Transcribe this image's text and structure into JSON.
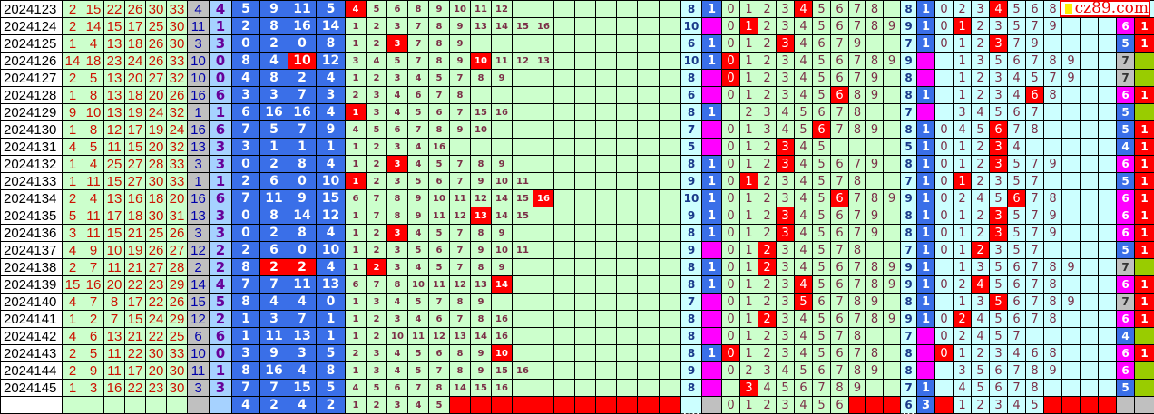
{
  "logo": {
    "text": "cz89.com"
  },
  "colors": {
    "red": "#ff0000",
    "blue": "#3a6fe8",
    "magenta": "#ff00ff",
    "gray": "#c0c0c0",
    "green": "#ccffcc",
    "olive": "#99cc00",
    "cyan": "#ccffff"
  },
  "rows": [
    {
      "issue": "2024123",
      "reds": [
        2,
        15,
        22,
        26,
        30,
        33
      ],
      "blue": 4,
      "d": 4,
      "e": [
        5,
        9,
        11,
        5
      ],
      "e_red": [],
      "f": [
        4,
        5,
        6,
        8,
        9,
        10,
        11,
        12
      ],
      "f_red": 4,
      "fc": 8,
      "fm": "1",
      "h": [
        0,
        1,
        2,
        3,
        4,
        5,
        6,
        7,
        8
      ],
      "h_red": 4,
      "ic": 8,
      "im": "1",
      "j": [
        0,
        2,
        3,
        4,
        5,
        6,
        8
      ],
      "j_red": 4,
      "k": null,
      "last": null
    },
    {
      "issue": "2024124",
      "reds": [
        2,
        14,
        15,
        17,
        25,
        30
      ],
      "blue": 11,
      "d": 1,
      "e": [
        2,
        8,
        16,
        14
      ],
      "e_red": [],
      "f": [
        1,
        2,
        3,
        7,
        8,
        9,
        13,
        14,
        15,
        16
      ],
      "f_red": null,
      "fc": 10,
      "fm": "",
      "h": [
        0,
        1,
        2,
        3,
        4,
        5,
        6,
        7,
        8,
        9
      ],
      "h_red": 1,
      "ic": 9,
      "im": "1",
      "j": [
        0,
        1,
        2,
        3,
        5,
        7,
        9
      ],
      "j_red": 1,
      "k": {
        "v": 6,
        "c": "magenta"
      },
      "last": "1"
    },
    {
      "issue": "2024125",
      "reds": [
        1,
        4,
        13,
        18,
        26,
        30
      ],
      "blue": 3,
      "d": 3,
      "e": [
        0,
        2,
        0,
        8
      ],
      "e_red": [],
      "f": [
        1,
        2,
        3,
        7,
        8,
        9
      ],
      "f_red": 3,
      "fc": 6,
      "fm": "1",
      "h": [
        0,
        1,
        2,
        3,
        4,
        6,
        7,
        9
      ],
      "h_red": 3,
      "ic": 7,
      "im": "1",
      "j": [
        0,
        1,
        2,
        3,
        7,
        9
      ],
      "j_red": 3,
      "k": {
        "v": 5,
        "c": "blue"
      },
      "last": "1"
    },
    {
      "issue": "2024126",
      "reds": [
        14,
        18,
        23,
        24,
        26,
        33
      ],
      "blue": 10,
      "d": 0,
      "e": [
        8,
        4,
        10,
        12
      ],
      "e_red": [
        2
      ],
      "f": [
        3,
        4,
        5,
        7,
        8,
        9,
        10,
        11,
        12,
        13
      ],
      "f_red": 10,
      "fc": 10,
      "fm": "1",
      "h": [
        0,
        1,
        2,
        3,
        4,
        5,
        6,
        7,
        8,
        9
      ],
      "h_red": 0,
      "ic": 9,
      "im": "",
      "j": [
        "",
        1,
        3,
        5,
        6,
        7,
        8,
        9
      ],
      "j_red": null,
      "k": {
        "v": 7,
        "c": "gray"
      },
      "last": ""
    },
    {
      "issue": "2024127",
      "reds": [
        2,
        5,
        13,
        20,
        27,
        32
      ],
      "blue": 10,
      "d": 0,
      "e": [
        4,
        8,
        2,
        4
      ],
      "e_red": [],
      "f": [
        1,
        2,
        3,
        4,
        5,
        7,
        8,
        9
      ],
      "f_red": null,
      "fc": 8,
      "fm": "",
      "h": [
        0,
        1,
        2,
        3,
        4,
        5,
        6,
        7,
        9
      ],
      "h_red": 0,
      "ic": 8,
      "im": "",
      "j": [
        "",
        1,
        2,
        3,
        4,
        5,
        7,
        9
      ],
      "j_red": null,
      "k": {
        "v": 7,
        "c": "gray"
      },
      "last": ""
    },
    {
      "issue": "2024128",
      "reds": [
        1,
        8,
        13,
        18,
        20,
        26
      ],
      "blue": 16,
      "d": 6,
      "e": [
        3,
        3,
        7,
        3
      ],
      "e_red": [],
      "f": [
        2,
        3,
        4,
        6,
        7,
        8
      ],
      "f_red": null,
      "fc": 6,
      "fm": "",
      "h": [
        0,
        1,
        2,
        3,
        4,
        5,
        6,
        8,
        9
      ],
      "h_red": 6,
      "ic": 8,
      "im": "1",
      "j": [
        "",
        1,
        2,
        3,
        4,
        6,
        8
      ],
      "j_red": 6,
      "k": {
        "v": 6,
        "c": "magenta"
      },
      "last": "1"
    },
    {
      "issue": "2024129",
      "reds": [
        9,
        10,
        13,
        19,
        24,
        32
      ],
      "blue": 1,
      "d": 1,
      "e": [
        6,
        16,
        16,
        4
      ],
      "e_red": [],
      "f": [
        1,
        3,
        4,
        5,
        6,
        7,
        15,
        16
      ],
      "f_red": 1,
      "fc": 8,
      "fm": "1",
      "h": [
        "",
        2,
        3,
        4,
        5,
        6,
        7,
        8
      ],
      "h_red": null,
      "ic": 7,
      "im": "",
      "j": [
        "",
        3,
        4,
        5,
        6,
        7
      ],
      "j_red": null,
      "k": {
        "v": 5,
        "c": "blue"
      },
      "last": ""
    },
    {
      "issue": "2024130",
      "reds": [
        1,
        8,
        12,
        17,
        19,
        24
      ],
      "blue": 16,
      "d": 6,
      "e": [
        7,
        5,
        7,
        9
      ],
      "e_red": [],
      "f": [
        4,
        5,
        6,
        7,
        8,
        9,
        10
      ],
      "f_red": null,
      "fc": 7,
      "fm": "",
      "h": [
        0,
        1,
        3,
        4,
        5,
        6,
        7,
        8,
        9
      ],
      "h_red": 6,
      "ic": 8,
      "im": "1",
      "j": [
        0,
        4,
        5,
        6,
        7,
        8
      ],
      "j_red": 6,
      "k": {
        "v": 5,
        "c": "blue"
      },
      "last": "1"
    },
    {
      "issue": "2024131",
      "reds": [
        4,
        5,
        11,
        15,
        20,
        32
      ],
      "blue": 13,
      "d": 3,
      "e": [
        3,
        1,
        1,
        1
      ],
      "e_red": [],
      "f": [
        1,
        2,
        3,
        4,
        16
      ],
      "f_red": null,
      "fc": 5,
      "fm": "",
      "h": [
        0,
        1,
        2,
        3,
        4,
        5
      ],
      "h_red": 3,
      "ic": 5,
      "im": "1",
      "j": [
        0,
        1,
        2,
        3,
        4
      ],
      "j_red": 3,
      "k": {
        "v": 4,
        "c": "blue"
      },
      "last": "1"
    },
    {
      "issue": "2024132",
      "reds": [
        1,
        4,
        25,
        27,
        28,
        33
      ],
      "blue": 3,
      "d": 3,
      "e": [
        0,
        2,
        8,
        4
      ],
      "e_red": [],
      "f": [
        1,
        2,
        3,
        4,
        5,
        7,
        8,
        9
      ],
      "f_red": 3,
      "fc": 8,
      "fm": "1",
      "h": [
        0,
        1,
        2,
        3,
        4,
        5,
        6,
        7,
        9
      ],
      "h_red": 3,
      "ic": 8,
      "im": "1",
      "j": [
        0,
        1,
        2,
        3,
        5,
        7,
        9
      ],
      "j_red": 3,
      "k": {
        "v": 6,
        "c": "magenta"
      },
      "last": "1"
    },
    {
      "issue": "2024133",
      "reds": [
        1,
        11,
        15,
        27,
        30,
        33
      ],
      "blue": 1,
      "d": 1,
      "e": [
        2,
        6,
        0,
        10
      ],
      "e_red": [],
      "f": [
        1,
        2,
        3,
        5,
        6,
        7,
        9,
        10,
        11
      ],
      "f_red": 1,
      "fc": 9,
      "fm": "1",
      "h": [
        0,
        1,
        2,
        3,
        4,
        5,
        7,
        8
      ],
      "h_red": 1,
      "ic": 7,
      "im": "1",
      "j": [
        0,
        1,
        2,
        3,
        5,
        7
      ],
      "j_red": 1,
      "k": {
        "v": 5,
        "c": "blue"
      },
      "last": "1"
    },
    {
      "issue": "2024134",
      "reds": [
        2,
        4,
        13,
        16,
        18,
        20
      ],
      "blue": 16,
      "d": 6,
      "e": [
        7,
        11,
        9,
        15
      ],
      "e_red": [],
      "f": [
        6,
        7,
        8,
        9,
        10,
        11,
        12,
        14,
        15,
        16
      ],
      "f_red": 16,
      "fc": 10,
      "fm": "1",
      "h": [
        0,
        1,
        2,
        3,
        4,
        5,
        6,
        7,
        8,
        9
      ],
      "h_red": 6,
      "ic": 9,
      "im": "1",
      "j": [
        0,
        2,
        4,
        5,
        6,
        7,
        8
      ],
      "j_red": 6,
      "k": {
        "v": 6,
        "c": "magenta"
      },
      "last": "1"
    },
    {
      "issue": "2024135",
      "reds": [
        5,
        11,
        17,
        18,
        30,
        31
      ],
      "blue": 13,
      "d": 3,
      "e": [
        0,
        8,
        14,
        12
      ],
      "e_red": [],
      "f": [
        1,
        7,
        8,
        9,
        11,
        12,
        13,
        14,
        15
      ],
      "f_red": 13,
      "fc": 9,
      "fm": "1",
      "h": [
        0,
        1,
        2,
        3,
        4,
        5,
        6,
        7,
        9
      ],
      "h_red": 3,
      "ic": 8,
      "im": "1",
      "j": [
        0,
        1,
        2,
        3,
        5,
        7,
        9
      ],
      "j_red": 3,
      "k": {
        "v": 6,
        "c": "magenta"
      },
      "last": "1"
    },
    {
      "issue": "2024136",
      "reds": [
        3,
        11,
        15,
        21,
        25,
        26
      ],
      "blue": 3,
      "d": 3,
      "e": [
        0,
        2,
        8,
        4
      ],
      "e_red": [],
      "f": [
        1,
        2,
        3,
        4,
        5,
        7,
        8,
        9
      ],
      "f_red": 3,
      "fc": 8,
      "fm": "1",
      "h": [
        0,
        1,
        2,
        3,
        4,
        5,
        6,
        7,
        9
      ],
      "h_red": 3,
      "ic": 8,
      "im": "1",
      "j": [
        0,
        1,
        2,
        3,
        5,
        7,
        9
      ],
      "j_red": 3,
      "k": {
        "v": 6,
        "c": "magenta"
      },
      "last": "1"
    },
    {
      "issue": "2024137",
      "reds": [
        4,
        9,
        10,
        19,
        26,
        27
      ],
      "blue": 12,
      "d": 2,
      "e": [
        2,
        6,
        0,
        10
      ],
      "e_red": [],
      "f": [
        1,
        2,
        3,
        5,
        6,
        7,
        9,
        10,
        11
      ],
      "f_red": null,
      "fc": 9,
      "fm": "",
      "h": [
        0,
        1,
        2,
        3,
        4,
        5,
        7,
        8
      ],
      "h_red": 2,
      "ic": 7,
      "im": "1",
      "j": [
        0,
        1,
        2,
        3,
        5,
        7
      ],
      "j_red": 2,
      "k": {
        "v": 5,
        "c": "blue"
      },
      "last": "1"
    },
    {
      "issue": "2024138",
      "reds": [
        2,
        7,
        11,
        21,
        27,
        28
      ],
      "blue": 2,
      "d": 2,
      "e": [
        8,
        2,
        2,
        4
      ],
      "e_red": [
        1,
        2
      ],
      "f": [
        1,
        2,
        3,
        4,
        5,
        7,
        8,
        9
      ],
      "f_red": 2,
      "fc": 8,
      "fm": "1",
      "h": [
        0,
        1,
        2,
        3,
        4,
        5,
        6,
        7,
        8,
        9
      ],
      "h_red": 2,
      "ic": 9,
      "im": "1",
      "j": [
        "",
        1,
        3,
        5,
        6,
        7,
        8,
        9
      ],
      "j_red": null,
      "k": {
        "v": 7,
        "c": "gray"
      },
      "last": ""
    },
    {
      "issue": "2024139",
      "reds": [
        15,
        16,
        20,
        22,
        23,
        29
      ],
      "blue": 14,
      "d": 4,
      "e": [
        7,
        7,
        11,
        13
      ],
      "e_red": [],
      "f": [
        6,
        7,
        8,
        10,
        11,
        12,
        13,
        14
      ],
      "f_red": 14,
      "fc": 8,
      "fm": "1",
      "h": [
        0,
        1,
        2,
        3,
        4,
        5,
        6,
        7,
        8,
        9
      ],
      "h_red": 4,
      "ic": 9,
      "im": "1",
      "j": [
        0,
        2,
        4,
        5,
        6,
        7,
        8
      ],
      "j_red": 4,
      "k": {
        "v": 6,
        "c": "magenta"
      },
      "last": "1"
    },
    {
      "issue": "2024140",
      "reds": [
        4,
        7,
        8,
        17,
        22,
        26
      ],
      "blue": 15,
      "d": 5,
      "e": [
        8,
        4,
        4,
        0
      ],
      "e_red": [],
      "f": [
        1,
        3,
        4,
        5,
        7,
        8,
        9
      ],
      "f_red": null,
      "fc": 7,
      "fm": "",
      "h": [
        0,
        1,
        2,
        3,
        5,
        6,
        7,
        8,
        9
      ],
      "h_red": 5,
      "ic": 8,
      "im": "1",
      "j": [
        "",
        1,
        3,
        5,
        6,
        7,
        8,
        9
      ],
      "j_red": 5,
      "k": {
        "v": 7,
        "c": "gray"
      },
      "last": "1"
    },
    {
      "issue": "2024141",
      "reds": [
        1,
        2,
        7,
        15,
        24,
        29
      ],
      "blue": 12,
      "d": 2,
      "e": [
        1,
        3,
        7,
        1
      ],
      "e_red": [],
      "f": [
        1,
        2,
        3,
        4,
        6,
        7,
        8,
        16
      ],
      "f_red": null,
      "fc": 8,
      "fm": "",
      "h": [
        0,
        1,
        2,
        3,
        4,
        5,
        6,
        7,
        8,
        9
      ],
      "h_red": 2,
      "ic": 9,
      "im": "1",
      "j": [
        0,
        2,
        4,
        5,
        6,
        7,
        8
      ],
      "j_red": 2,
      "k": {
        "v": 6,
        "c": "magenta"
      },
      "last": "1"
    },
    {
      "issue": "2024142",
      "reds": [
        4,
        6,
        13,
        21,
        22,
        25
      ],
      "blue": 6,
      "d": 6,
      "e": [
        1,
        11,
        13,
        1
      ],
      "e_red": [],
      "f": [
        1,
        2,
        10,
        11,
        12,
        13,
        14,
        16
      ],
      "f_red": null,
      "fc": 8,
      "fm": "",
      "h": [
        0,
        1,
        2,
        3,
        4,
        5,
        7,
        8
      ],
      "h_red": null,
      "ic": 7,
      "im": "",
      "j": [
        0,
        2,
        4,
        5,
        7
      ],
      "j_red": null,
      "k": {
        "v": 4,
        "c": "blue"
      },
      "last": ""
    },
    {
      "issue": "2024143",
      "reds": [
        2,
        5,
        11,
        22,
        30,
        33
      ],
      "blue": 10,
      "d": 0,
      "e": [
        3,
        9,
        3,
        5
      ],
      "e_red": [],
      "f": [
        2,
        3,
        4,
        5,
        6,
        8,
        9,
        10
      ],
      "f_red": 10,
      "fc": 8,
      "fm": "1",
      "h": [
        0,
        1,
        2,
        3,
        4,
        5,
        6,
        7,
        8
      ],
      "h_red": 0,
      "ic": 8,
      "im": "",
      "j": [
        0,
        1,
        2,
        3,
        4,
        6,
        8
      ],
      "j_red": 0,
      "k": {
        "v": 6,
        "c": "magenta"
      },
      "last": "1"
    },
    {
      "issue": "2024144",
      "reds": [
        2,
        9,
        11,
        17,
        20,
        30
      ],
      "blue": 11,
      "d": 1,
      "e": [
        8,
        16,
        4,
        8
      ],
      "e_red": [],
      "f": [
        1,
        3,
        4,
        5,
        7,
        8,
        9,
        15,
        16
      ],
      "f_red": null,
      "fc": 9,
      "fm": "",
      "h": [
        0,
        2,
        3,
        4,
        5,
        6,
        7,
        8,
        9
      ],
      "h_red": null,
      "ic": 8,
      "im": "",
      "j": [
        "",
        3,
        5,
        6,
        7,
        8,
        9
      ],
      "j_red": null,
      "k": {
        "v": 6,
        "c": "magenta"
      },
      "last": ""
    },
    {
      "issue": "2024145",
      "reds": [
        1,
        3,
        16,
        22,
        23,
        30
      ],
      "blue": 3,
      "d": 3,
      "e": [
        7,
        7,
        15,
        5
      ],
      "e_red": [],
      "f": [
        4,
        5,
        6,
        7,
        8,
        14,
        15,
        16
      ],
      "f_red": null,
      "fc": 8,
      "fm": "",
      "h": [
        "",
        3,
        4,
        5,
        6,
        7,
        8,
        9
      ],
      "h_red": 3,
      "ic": 7,
      "im": "1",
      "j": [
        "",
        4,
        5,
        6,
        7,
        8
      ],
      "j_red": null,
      "k": {
        "v": 5,
        "c": "blue"
      },
      "last": ""
    }
  ],
  "footer": {
    "e": [
      4,
      2,
      4,
      2
    ],
    "f": [
      1,
      2,
      3,
      4,
      5
    ],
    "h": [
      0,
      1,
      2,
      3,
      4,
      5,
      6
    ],
    "ic": 6,
    "im": "3",
    "j": [
      "",
      1,
      2,
      3,
      4,
      5
    ]
  }
}
